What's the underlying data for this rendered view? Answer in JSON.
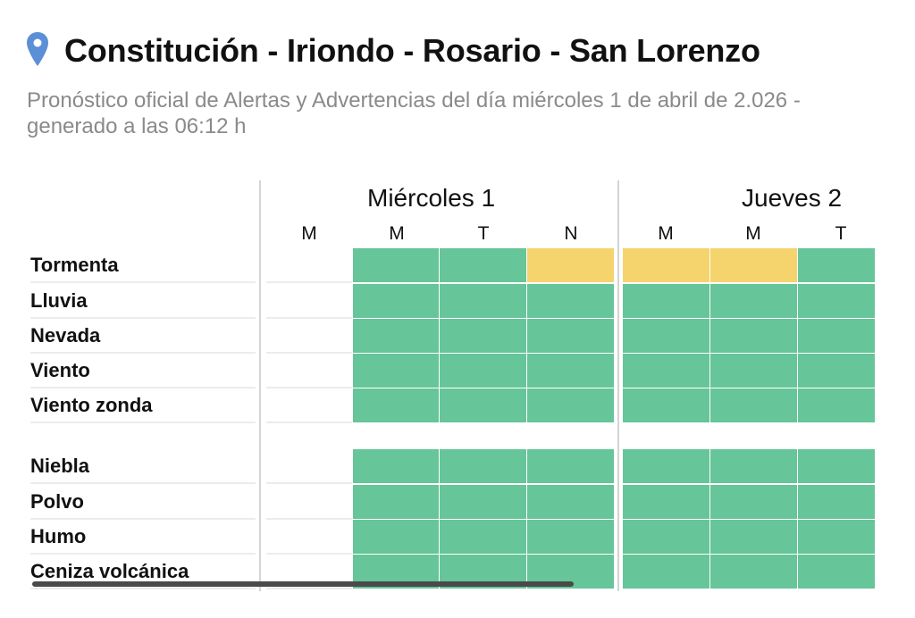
{
  "header": {
    "title": "Constitución - Iriondo - Rosario - San Lorenzo",
    "pin_icon": "location-pin-icon",
    "subtitle": "Pronóstico oficial de Alertas y Advertencias del día miércoles 1 de abril de 2.026 - generado a las 06:12 h"
  },
  "colors": {
    "green": "#66c599",
    "yellow": "#f6d46d",
    "pin": "#5b8fd6"
  },
  "days": [
    "Miércoles 1",
    "Jueves 2"
  ],
  "periods": [
    "M",
    "M",
    "T",
    "N",
    "M",
    "M",
    "T"
  ],
  "rows": [
    {
      "label": "Tormenta"
    },
    {
      "label": "Lluvia"
    },
    {
      "label": "Nevada"
    },
    {
      "label": "Viento"
    },
    {
      "label": "Viento zonda"
    },
    {
      "label": "Niebla"
    },
    {
      "label": "Polvo"
    },
    {
      "label": "Humo"
    },
    {
      "label": "Ceniza volcánica"
    }
  ],
  "levels": {
    "Tormenta": [
      "none",
      "green",
      "green",
      "yellow",
      "yellow",
      "yellow",
      "green"
    ],
    "Lluvia": [
      "none",
      "green",
      "green",
      "green",
      "green",
      "green",
      "green"
    ],
    "Nevada": [
      "none",
      "green",
      "green",
      "green",
      "green",
      "green",
      "green"
    ],
    "Viento": [
      "none",
      "green",
      "green",
      "green",
      "green",
      "green",
      "green"
    ],
    "Viento zonda": [
      "none",
      "green",
      "green",
      "green",
      "green",
      "green",
      "green"
    ],
    "Niebla": [
      "none",
      "green",
      "green",
      "green",
      "green",
      "green",
      "green"
    ],
    "Polvo": [
      "none",
      "green",
      "green",
      "green",
      "green",
      "green",
      "green"
    ],
    "Humo": [
      "none",
      "green",
      "green",
      "green",
      "green",
      "green",
      "green"
    ],
    "Ceniza volcánica": [
      "none",
      "green",
      "green",
      "green",
      "green",
      "green",
      "green"
    ]
  }
}
